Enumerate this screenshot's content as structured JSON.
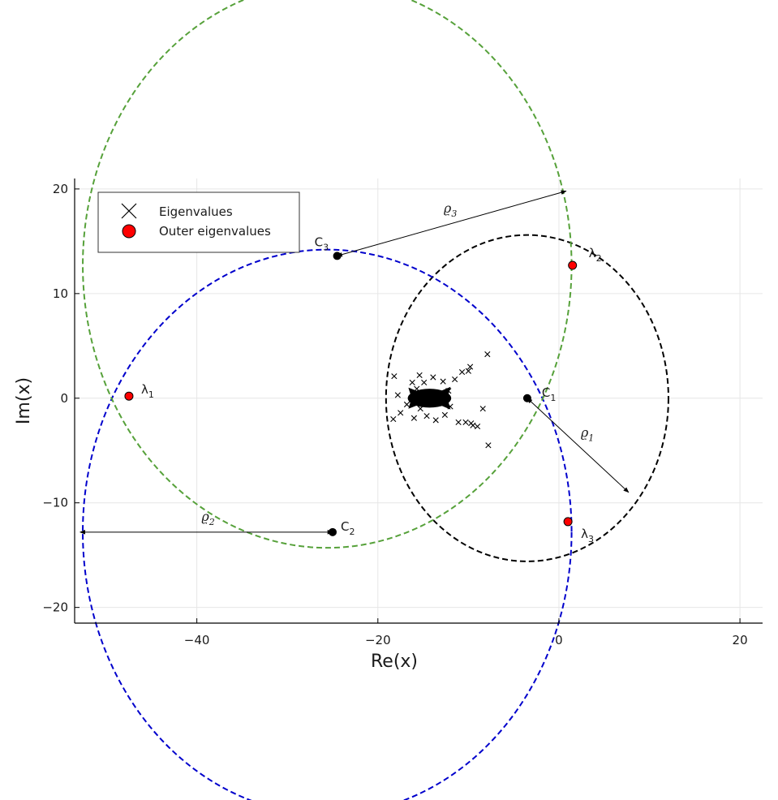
{
  "chart_data": {
    "type": "scatter",
    "xlabel": "Re(x)",
    "ylabel": "Im(x)",
    "xlim": [
      -53.5,
      22.5
    ],
    "ylim": [
      -21.5,
      21
    ],
    "x_ticks": [
      -40,
      -20,
      0,
      20
    ],
    "y_ticks": [
      -20,
      -10,
      0,
      10,
      20
    ],
    "x_tick_labels": [
      "−40",
      "−20",
      "0",
      "20"
    ],
    "y_tick_labels": [
      "−20",
      "−10",
      "0",
      "10",
      "20"
    ],
    "grid": true,
    "legend_position": "top-left",
    "legend": [
      {
        "label": "Eigenvalues",
        "marker": "cross",
        "color": "#000000"
      },
      {
        "label": "Outer eigenvalues",
        "marker": "circle",
        "color": "#ff0000"
      }
    ],
    "eigenvalues": [
      [
        -18.2,
        2.1
      ],
      [
        -17.8,
        0.3
      ],
      [
        -17.5,
        -1.4
      ],
      [
        -18.3,
        -2.0
      ],
      [
        -16.2,
        1.5
      ],
      [
        -16.8,
        -0.6
      ],
      [
        -16.0,
        -1.9
      ],
      [
        -15.4,
        2.2
      ],
      [
        -15.7,
        0.9
      ],
      [
        -15.3,
        -1.0
      ],
      [
        -14.9,
        1.5
      ],
      [
        -14.6,
        -1.7
      ],
      [
        -13.9,
        2.0
      ],
      [
        -13.6,
        -2.1
      ],
      [
        -12.8,
        1.6
      ],
      [
        -12.6,
        -1.6
      ],
      [
        -12.2,
        0.7
      ],
      [
        -12.0,
        -0.8
      ],
      [
        -11.5,
        1.8
      ],
      [
        -11.1,
        -2.3
      ],
      [
        -10.7,
        2.5
      ],
      [
        -10.3,
        -2.3
      ],
      [
        -10.0,
        2.6
      ],
      [
        -9.7,
        -2.4
      ],
      [
        -9.8,
        3.0
      ],
      [
        -9.0,
        -2.7
      ],
      [
        -8.4,
        -1.0
      ],
      [
        -7.9,
        4.2
      ],
      [
        -7.8,
        -4.5
      ],
      [
        -9.5,
        -2.6
      ]
    ],
    "eigenvalue_cluster_center": [
      -14.3,
      0
    ],
    "outer_eigenvalues": [
      {
        "label": "λ",
        "subscript": "1",
        "x": -47.5,
        "y": 0.2
      },
      {
        "label": "λ",
        "subscript": "2",
        "x": 1.5,
        "y": 12.7
      },
      {
        "label": "λ",
        "subscript": "3",
        "x": 1.0,
        "y": -11.8
      }
    ],
    "centers": [
      {
        "label": "C",
        "subscript": "1",
        "x": -3.5,
        "y": 0.0
      },
      {
        "label": "C",
        "subscript": "2",
        "x": -25.0,
        "y": -12.8
      },
      {
        "label": "C",
        "subscript": "3",
        "x": -24.5,
        "y": 13.6
      }
    ],
    "circles": [
      {
        "name": "circle-1",
        "cx": -3.5,
        "cy": 0.0,
        "r": 15.6,
        "color": "#000000"
      },
      {
        "name": "circle-2",
        "cx": -25.6,
        "cy": -12.8,
        "r": 27.0,
        "color": "#0000cc"
      },
      {
        "name": "circle-3",
        "cx": -25.6,
        "cy": 12.7,
        "r": 27.0,
        "color": "#56a13a"
      }
    ],
    "radii": [
      {
        "label": "ϱ",
        "subscript": "1",
        "from": [
          -3.5,
          0.0
        ],
        "to": [
          7.7,
          -9.0
        ]
      },
      {
        "label": "ϱ",
        "subscript": "2",
        "from": [
          -25.0,
          -12.8
        ],
        "to": [
          -52.9,
          -12.8
        ]
      },
      {
        "label": "ϱ",
        "subscript": "3",
        "from": [
          -24.5,
          13.6
        ],
        "to": [
          0.8,
          19.8
        ]
      }
    ]
  }
}
